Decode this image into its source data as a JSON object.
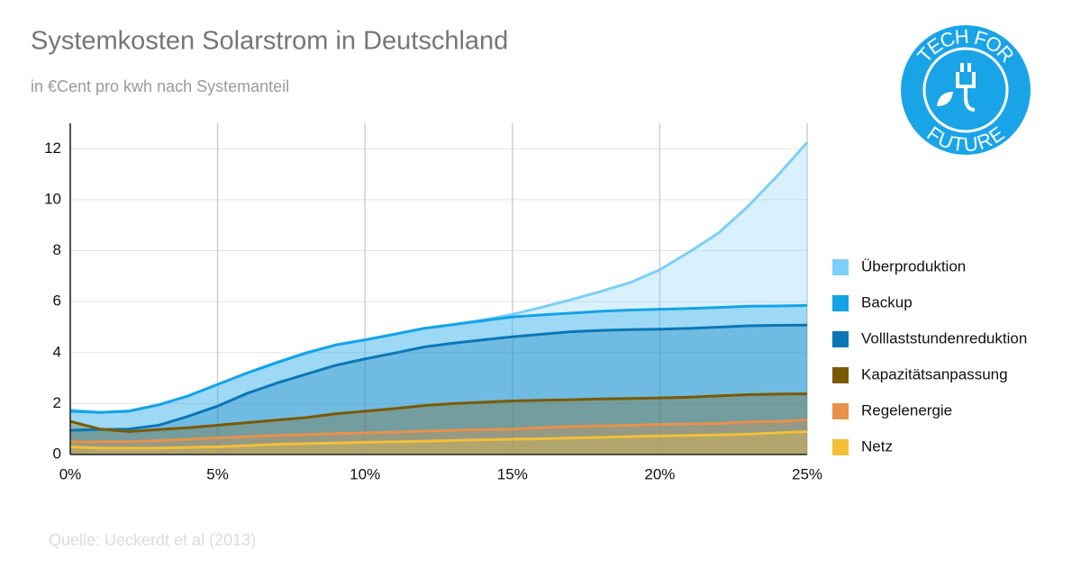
{
  "chart_data": {
    "type": "area",
    "title": "Systemkosten Solarstrom in Deutschland",
    "subtitle": "in €Cent pro kwh nach Systemanteil",
    "source": "Quelle: Ueckerdt et al (2013)",
    "logo": {
      "top": "TECH FOR",
      "bottom": "FUTURE"
    },
    "x": [
      0,
      1,
      2,
      3,
      4,
      5,
      6,
      7,
      8,
      9,
      10,
      11,
      12,
      13,
      14,
      15,
      16,
      17,
      18,
      19,
      20,
      21,
      22,
      23,
      24,
      25
    ],
    "xlim": [
      0,
      25
    ],
    "xticks": [
      {
        "value": 0,
        "label": "0%"
      },
      {
        "value": 5,
        "label": "5%"
      },
      {
        "value": 10,
        "label": "10%"
      },
      {
        "value": 15,
        "label": "15%"
      },
      {
        "value": 20,
        "label": "20%"
      },
      {
        "value": 25,
        "label": "25%"
      }
    ],
    "ylim": [
      0,
      13
    ],
    "yticks": [
      0,
      2,
      4,
      6,
      8,
      10,
      12
    ],
    "grid": true,
    "legend": "right",
    "series": [
      {
        "name": "Überproduktion",
        "color": "#7dcff7",
        "values": [
          1.75,
          1.65,
          1.72,
          1.95,
          2.3,
          2.75,
          3.2,
          3.62,
          4.0,
          4.3,
          4.5,
          4.72,
          4.95,
          5.1,
          5.28,
          5.5,
          5.78,
          6.08,
          6.4,
          6.75,
          7.25,
          7.95,
          8.7,
          9.75,
          10.95,
          12.25
        ]
      },
      {
        "name": "Backup",
        "color": "#14a3e6",
        "values": [
          1.7,
          1.65,
          1.7,
          1.95,
          2.3,
          2.75,
          3.2,
          3.6,
          3.98,
          4.3,
          4.5,
          4.72,
          4.95,
          5.1,
          5.25,
          5.4,
          5.48,
          5.55,
          5.62,
          5.67,
          5.7,
          5.73,
          5.77,
          5.82,
          5.83,
          5.85
        ]
      },
      {
        "name": "Volllaststundenreduktion",
        "color": "#0a76b6",
        "values": [
          0.95,
          0.98,
          1.0,
          1.15,
          1.5,
          1.9,
          2.4,
          2.8,
          3.15,
          3.5,
          3.75,
          3.98,
          4.22,
          4.37,
          4.5,
          4.62,
          4.72,
          4.82,
          4.87,
          4.9,
          4.92,
          4.95,
          5.0,
          5.05,
          5.07,
          5.08
        ]
      },
      {
        "name": "Kapazitätsanpassung",
        "color": "#7a5a00",
        "values": [
          1.3,
          1.0,
          0.9,
          0.98,
          1.05,
          1.15,
          1.25,
          1.35,
          1.45,
          1.6,
          1.7,
          1.8,
          1.92,
          2.0,
          2.05,
          2.1,
          2.13,
          2.15,
          2.18,
          2.2,
          2.22,
          2.25,
          2.3,
          2.35,
          2.37,
          2.38
        ]
      },
      {
        "name": "Regelenergie",
        "color": "#e8914a",
        "values": [
          0.5,
          0.5,
          0.5,
          0.55,
          0.6,
          0.65,
          0.7,
          0.75,
          0.78,
          0.82,
          0.85,
          0.88,
          0.92,
          0.95,
          0.98,
          1.0,
          1.05,
          1.1,
          1.12,
          1.15,
          1.18,
          1.2,
          1.22,
          1.28,
          1.3,
          1.35
        ]
      },
      {
        "name": "Netz",
        "color": "#f2c037",
        "values": [
          0.3,
          0.25,
          0.25,
          0.25,
          0.28,
          0.3,
          0.35,
          0.4,
          0.43,
          0.45,
          0.48,
          0.5,
          0.52,
          0.55,
          0.58,
          0.6,
          0.62,
          0.65,
          0.67,
          0.7,
          0.73,
          0.75,
          0.77,
          0.8,
          0.85,
          0.9
        ]
      }
    ]
  }
}
